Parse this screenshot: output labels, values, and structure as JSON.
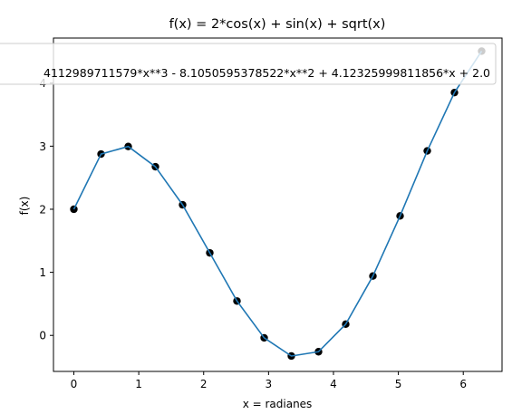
{
  "chart_data": {
    "type": "line",
    "title": "f(x) = 2*cos(x) + sin(x) + sqrt(x)",
    "xlabel": "x = radianes",
    "ylabel": "f(x)",
    "xlim": [
      -0.3142,
      6.5973
    ],
    "ylim": [
      -0.5714,
      4.7143
    ],
    "xticks": [
      0,
      1,
      2,
      3,
      4,
      5,
      6
    ],
    "yticks": [
      0,
      1,
      2,
      3,
      4
    ],
    "grid": false,
    "legend": {
      "placement": "top-center",
      "label": "4112989711579*x**3 - 8.1050595378522*x**2 + 4.12325999811856*x + 2.0"
    },
    "series": [
      {
        "kind": "points",
        "color": "#000000",
        "x": [
          0.0,
          0.4189,
          0.8378,
          1.2566,
          1.6755,
          2.0944,
          2.5133,
          2.9322,
          3.351,
          3.7699,
          4.1888,
          4.6077,
          5.0265,
          5.4454,
          5.8643,
          6.2832
        ],
        "y": [
          2.0,
          2.875,
          2.995,
          2.674,
          2.07,
          1.308,
          0.545,
          -0.039,
          -0.327,
          -0.259,
          0.178,
          0.941,
          1.895,
          2.925,
          3.85,
          4.507
        ]
      },
      {
        "kind": "line",
        "color": "#1f77b4",
        "x": [
          0.0,
          0.4189,
          0.8378,
          1.2566,
          1.6755,
          2.0944,
          2.5133,
          2.9322,
          3.351,
          3.7699,
          4.1888,
          4.6077,
          5.0265,
          5.4454,
          5.8643,
          6.2832
        ],
        "y": [
          2.0,
          2.875,
          2.995,
          2.674,
          2.07,
          1.308,
          0.545,
          -0.039,
          -0.327,
          -0.259,
          0.178,
          0.941,
          1.895,
          2.925,
          3.85,
          4.507
        ]
      }
    ]
  }
}
